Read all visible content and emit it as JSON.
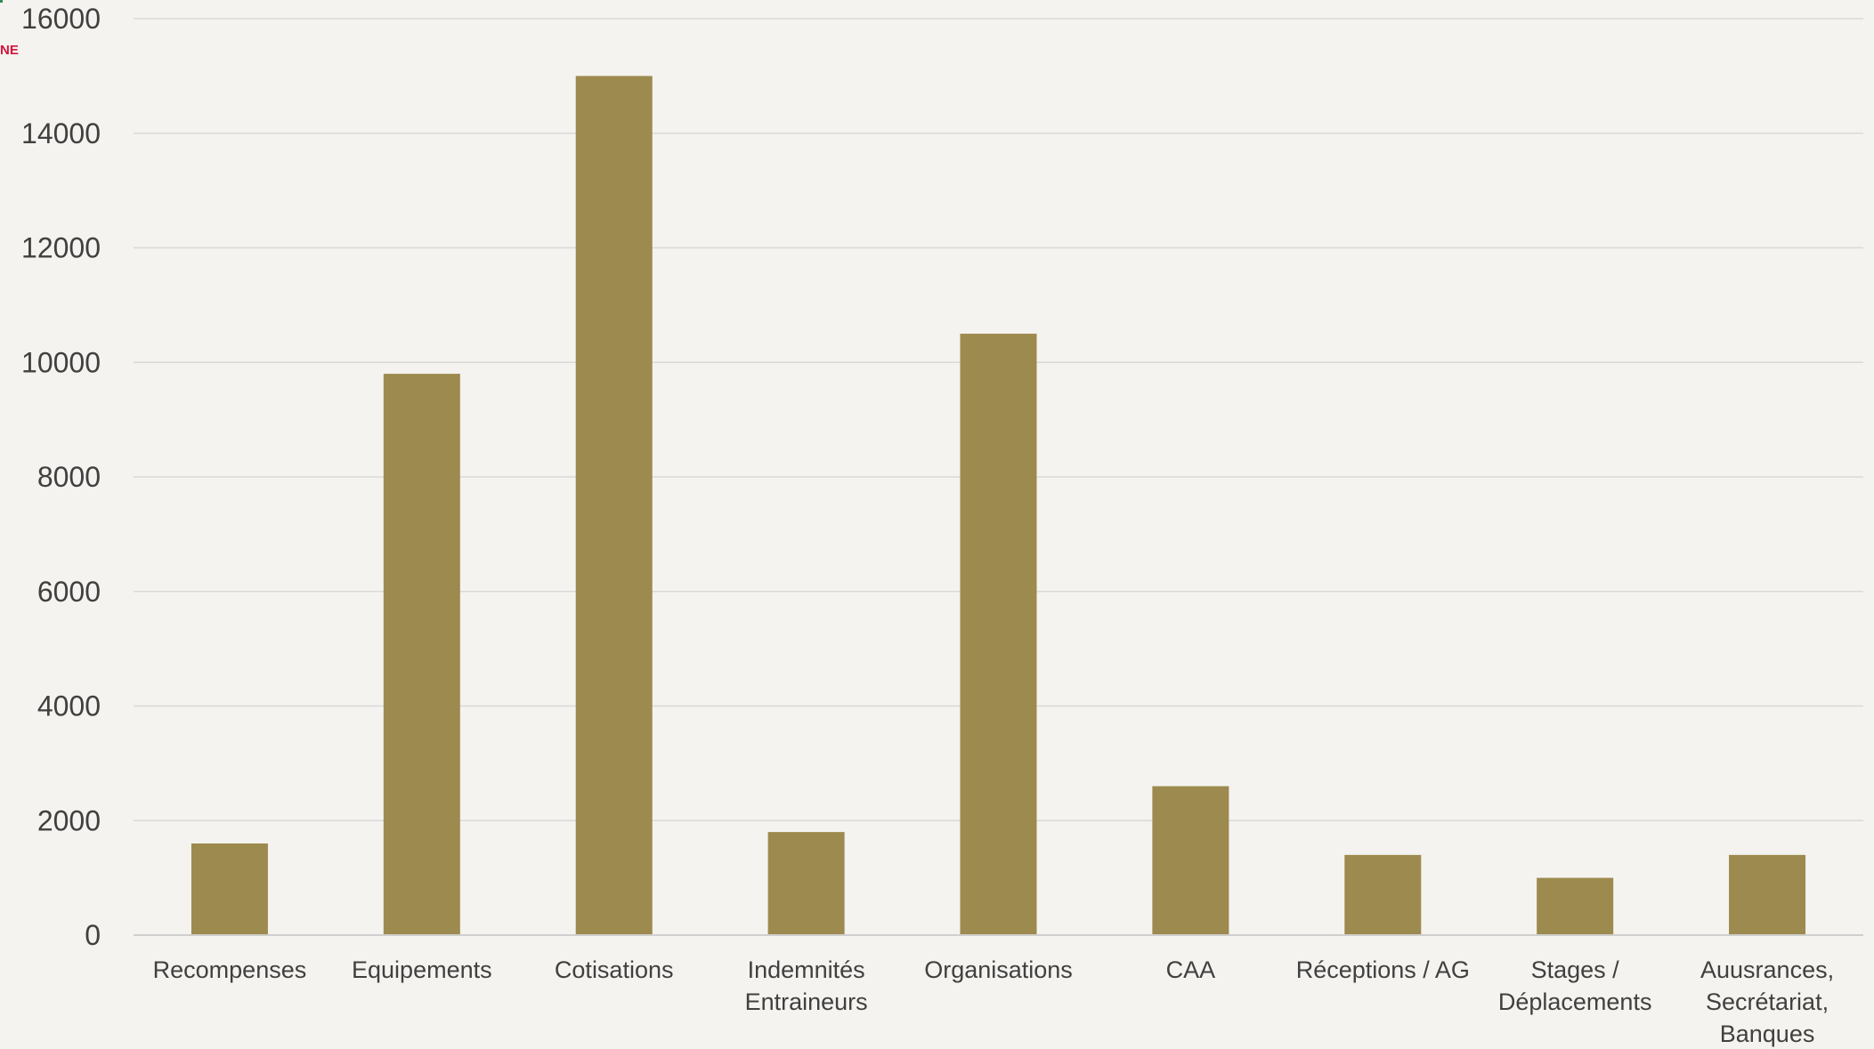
{
  "corner_text": "NE",
  "colors": {
    "background": "#f4f3ef",
    "bar": "#9d8a4f",
    "grid": "#d9d9d9",
    "axis": "#cfcfcf",
    "tick_text": "#404040",
    "category_text": "#404040",
    "corner_text": "#d4143c"
  },
  "chart_data": {
    "type": "bar",
    "title": "",
    "xlabel": "",
    "ylabel": "",
    "ylim": [
      0,
      16000
    ],
    "yticks": [
      0,
      2000,
      4000,
      6000,
      8000,
      10000,
      12000,
      14000,
      16000
    ],
    "grid": true,
    "legend": "none",
    "categories": [
      [
        "Recompenses"
      ],
      [
        "Equipements"
      ],
      [
        "Cotisations"
      ],
      [
        "Indemnités",
        "Entraineurs"
      ],
      [
        "Organisations"
      ],
      [
        "CAA"
      ],
      [
        "Réceptions / AG"
      ],
      [
        "Stages /",
        "Déplacements"
      ],
      [
        "Auusrances,",
        "Secrétariat,",
        "Banques"
      ]
    ],
    "values": [
      1600,
      9800,
      15000,
      1800,
      10500,
      2600,
      1400,
      1000,
      1400
    ]
  }
}
